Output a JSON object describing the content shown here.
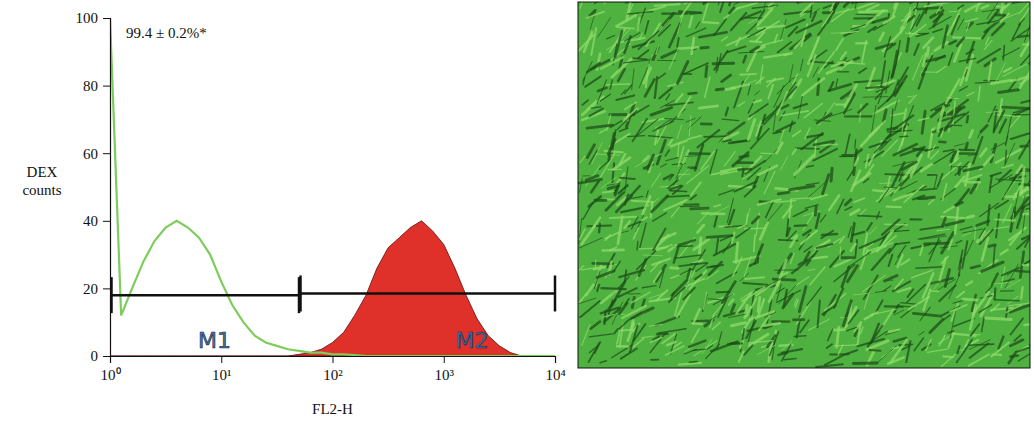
{
  "chart_data": {
    "type": "line",
    "xlabel": "FL2-H",
    "ylabel": "DEX counts",
    "log": "x",
    "xlim": [
      1,
      10000
    ],
    "ylim": [
      0,
      100
    ],
    "xticks": [
      {
        "value": 1,
        "label": "10⁰"
      },
      {
        "value": 10,
        "label": "10¹"
      },
      {
        "value": 100,
        "label": "10²"
      },
      {
        "value": 1000,
        "label": "10³"
      },
      {
        "value": 10000,
        "label": "10⁴"
      }
    ],
    "yticks": [
      0,
      20,
      40,
      60,
      80,
      100
    ],
    "x": [
      1,
      1.26,
      1.58,
      2,
      2.51,
      3.16,
      3.98,
      5.01,
      6.31,
      7.94,
      10,
      12.6,
      15.8,
      20,
      25.1,
      31.6,
      39.8,
      50.1,
      63.1,
      79.4,
      100,
      126,
      158,
      200,
      251,
      316,
      398,
      501,
      631,
      794,
      1000,
      1259,
      1585,
      1995,
      2512,
      3162,
      3981,
      5012,
      6310,
      7943,
      10000
    ],
    "series": [
      {
        "type": "area",
        "color": "#e0302a",
        "values": [
          0,
          0,
          0,
          0,
          0,
          0,
          0,
          0,
          0,
          0,
          0,
          0,
          0,
          0,
          0,
          0,
          0,
          0.5,
          1,
          2,
          4,
          7,
          12,
          18,
          26,
          32,
          35,
          38,
          40,
          37,
          33,
          26,
          18,
          11,
          6,
          3,
          1,
          0,
          0,
          0,
          0
        ]
      },
      {
        "type": "line",
        "color": "#7dcc5c",
        "values": [
          100,
          12,
          20,
          28,
          34,
          38,
          40,
          38,
          35,
          30,
          22,
          15,
          10,
          6,
          4,
          3,
          2,
          1.5,
          1,
          1,
          0.5,
          0.5,
          0.3,
          0,
          0,
          0,
          0,
          0,
          0,
          0,
          0,
          0,
          0,
          0,
          0,
          0,
          0,
          0,
          0,
          0,
          0
        ]
      }
    ],
    "gates": [
      {
        "label": "M1",
        "x": [
          1,
          50
        ],
        "y": 18
      },
      {
        "label": "M2",
        "x": [
          50,
          10000
        ],
        "y": 18.5
      }
    ],
    "annotations": [
      {
        "text": "99.4 ± 0.2%*"
      }
    ]
  }
}
